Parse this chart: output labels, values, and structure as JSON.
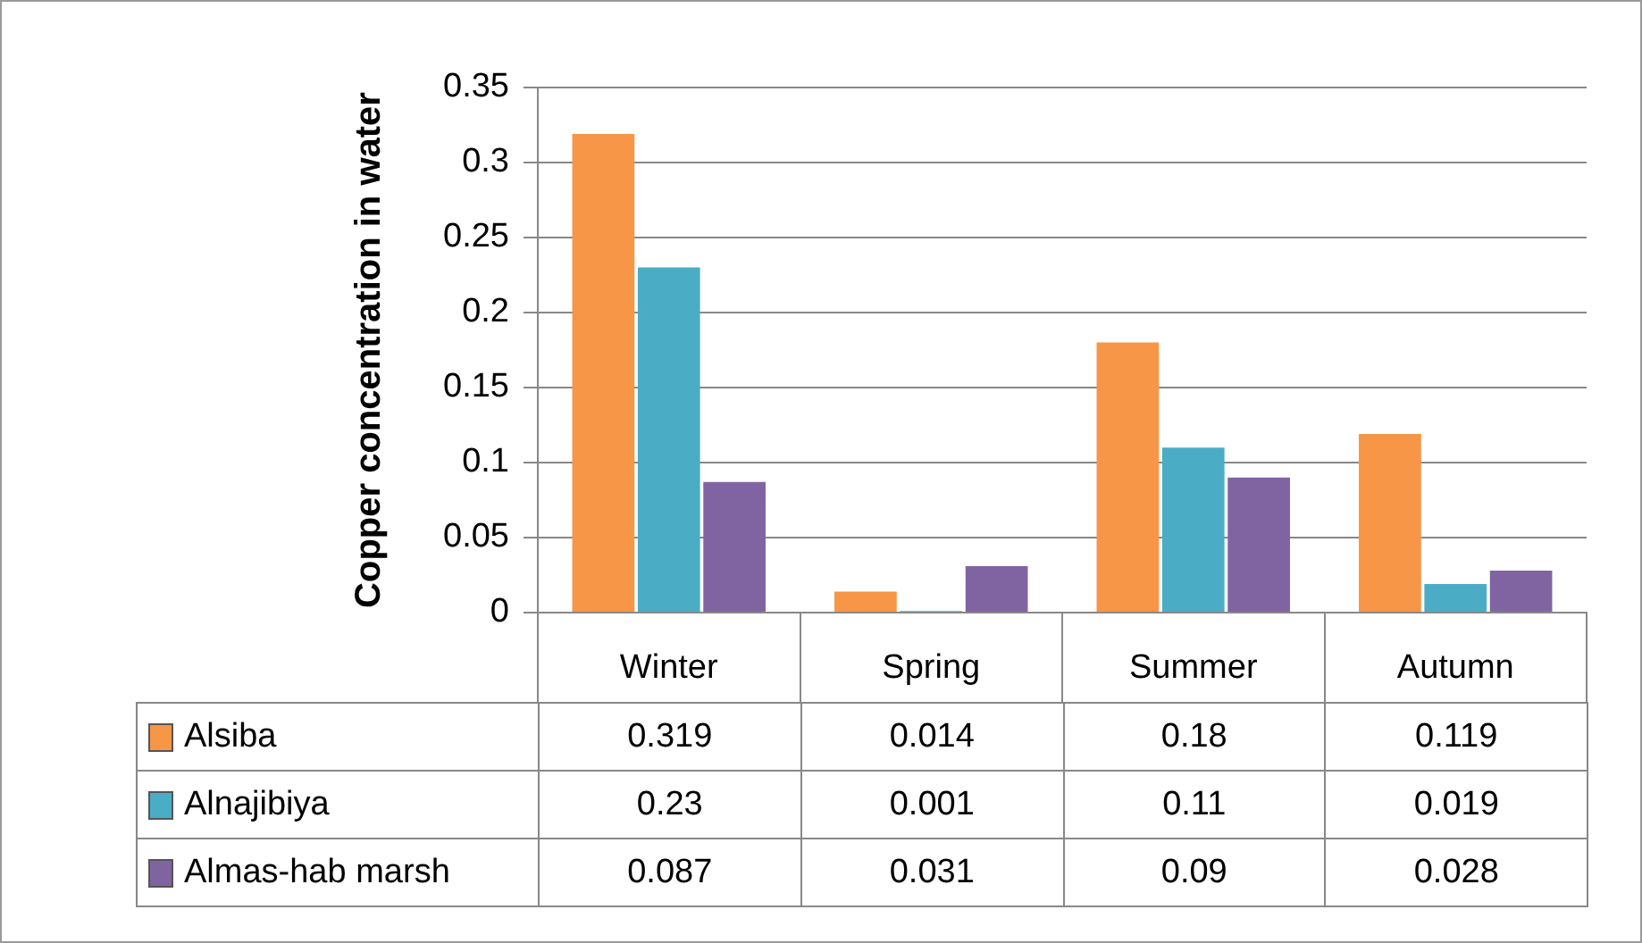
{
  "chart_data": {
    "type": "bar",
    "ylabel": "Copper concentration in water",
    "categories": [
      "Winter",
      "Spring",
      "Summer",
      "Autumn"
    ],
    "series": [
      {
        "name": "Alsiba",
        "color": "#f79646",
        "values": [
          0.319,
          0.014,
          0.18,
          0.119
        ]
      },
      {
        "name": "Alnajibiya",
        "color": "#4bacc6",
        "values": [
          0.23,
          0.001,
          0.11,
          0.019
        ]
      },
      {
        "name": "Almas-hab marsh",
        "color": "#8064a2",
        "values": [
          0.087,
          0.031,
          0.09,
          0.028
        ]
      }
    ],
    "ylim": [
      0,
      0.35
    ],
    "yticks": [
      0,
      0.05,
      0.1,
      0.15,
      0.2,
      0.25,
      0.3,
      0.35
    ],
    "grid": "y",
    "legend": "bottom",
    "data_labels": true
  }
}
